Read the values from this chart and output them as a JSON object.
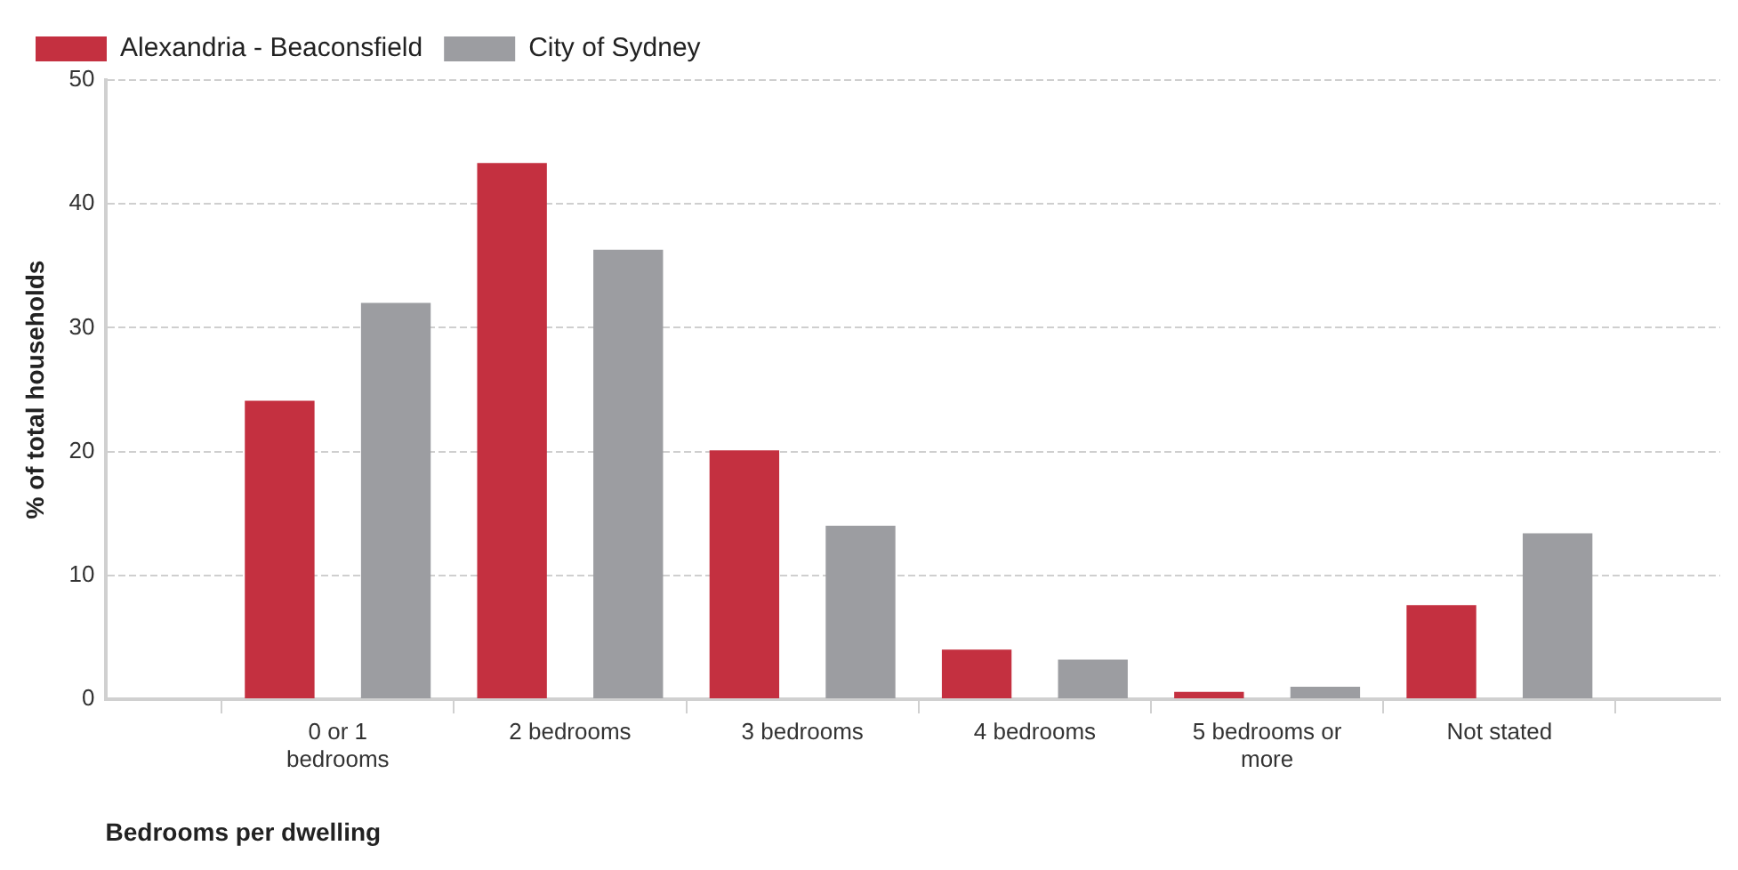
{
  "chart_data": {
    "type": "bar",
    "xlabel": "Bedrooms per dwelling",
    "ylabel": "% of total households",
    "categories": [
      "0 or 1 bedrooms",
      "2 bedrooms",
      "3 bedrooms",
      "4 bedrooms",
      "5 bedrooms or more",
      "Not stated"
    ],
    "series": [
      {
        "name": "Alexandria - Beaconsfield",
        "color": "#c43040",
        "values": [
          24.1,
          43.3,
          20.1,
          4.0,
          0.6,
          7.6
        ]
      },
      {
        "name": "City of Sydney",
        "color": "#9c9da1",
        "values": [
          32.0,
          36.3,
          14.0,
          3.2,
          1.0,
          13.4
        ]
      }
    ],
    "ylim": [
      0,
      50
    ],
    "yticks": [
      0,
      10,
      20,
      30,
      40,
      50
    ],
    "grid": "y",
    "legend": "top left"
  }
}
